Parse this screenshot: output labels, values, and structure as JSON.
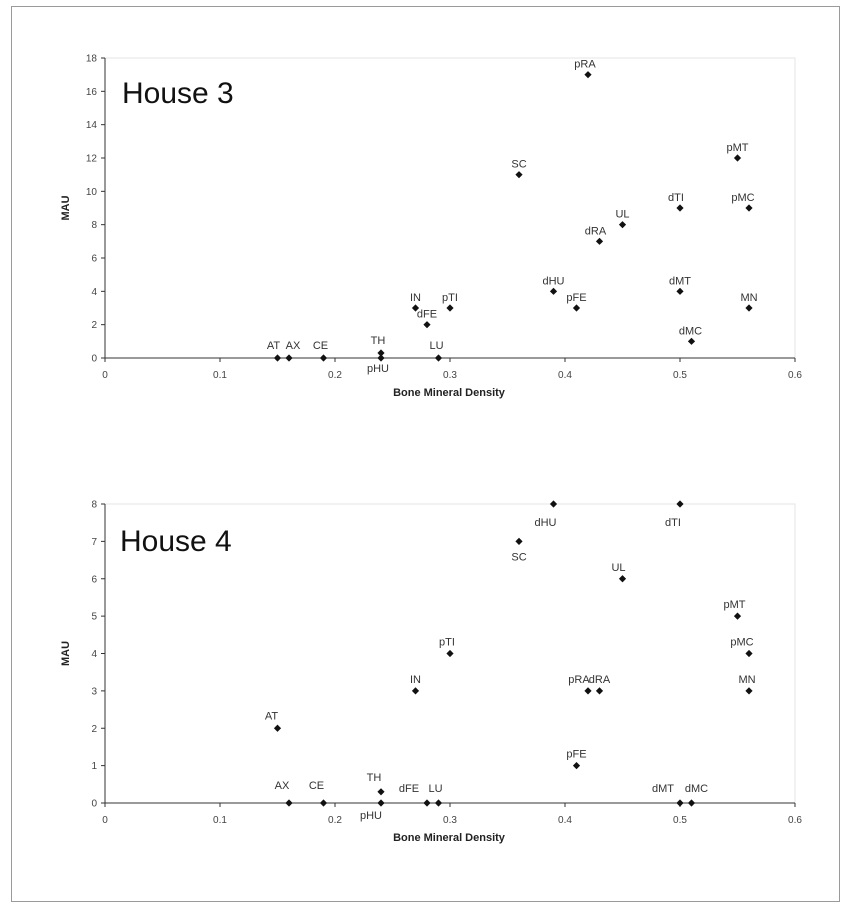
{
  "chart_data": [
    {
      "type": "scatter",
      "title": "House 3",
      "xlabel": "Bone Mineral Density",
      "ylabel": "MAU",
      "xlim": [
        0,
        0.6
      ],
      "ylim": [
        0,
        18
      ],
      "xticks": [
        "0",
        "0.1",
        "0.2",
        "0.3",
        "0.4",
        "0.5",
        "0.6"
      ],
      "yticks": [
        "0",
        "2",
        "4",
        "6",
        "8",
        "10",
        "12",
        "14",
        "16",
        "18"
      ],
      "points": [
        {
          "label": "AT",
          "x": 0.15,
          "y": 0
        },
        {
          "label": "AX",
          "x": 0.16,
          "y": 0
        },
        {
          "label": "CE",
          "x": 0.19,
          "y": 0
        },
        {
          "label": "TH",
          "x": 0.24,
          "y": 0.3
        },
        {
          "label": "pHU",
          "x": 0.24,
          "y": 0
        },
        {
          "label": "IN",
          "x": 0.27,
          "y": 3
        },
        {
          "label": "dFE",
          "x": 0.28,
          "y": 2
        },
        {
          "label": "pTI",
          "x": 0.3,
          "y": 3
        },
        {
          "label": "LU",
          "x": 0.29,
          "y": 0
        },
        {
          "label": "SC",
          "x": 0.36,
          "y": 11
        },
        {
          "label": "dHU",
          "x": 0.39,
          "y": 4
        },
        {
          "label": "pFE",
          "x": 0.41,
          "y": 3
        },
        {
          "label": "pRA",
          "x": 0.42,
          "y": 17
        },
        {
          "label": "dRA",
          "x": 0.43,
          "y": 7
        },
        {
          "label": "UL",
          "x": 0.45,
          "y": 8
        },
        {
          "label": "dTI",
          "x": 0.5,
          "y": 9
        },
        {
          "label": "dMT",
          "x": 0.5,
          "y": 4
        },
        {
          "label": "dMC",
          "x": 0.51,
          "y": 1
        },
        {
          "label": "pMT",
          "x": 0.55,
          "y": 12
        },
        {
          "label": "pMC",
          "x": 0.56,
          "y": 9
        },
        {
          "label": "MN",
          "x": 0.56,
          "y": 3
        }
      ]
    },
    {
      "type": "scatter",
      "title": "House 4",
      "xlabel": "Bone Mineral Density",
      "ylabel": "MAU",
      "xlim": [
        0,
        0.6
      ],
      "ylim": [
        0,
        8
      ],
      "xticks": [
        "0",
        "0.1",
        "0.2",
        "0.3",
        "0.4",
        "0.5",
        "0.6"
      ],
      "yticks": [
        "0",
        "1",
        "2",
        "3",
        "4",
        "5",
        "6",
        "7",
        "8"
      ],
      "points": [
        {
          "label": "AT",
          "x": 0.15,
          "y": 2
        },
        {
          "label": "AX",
          "x": 0.16,
          "y": 0
        },
        {
          "label": "CE",
          "x": 0.19,
          "y": 0
        },
        {
          "label": "TH",
          "x": 0.24,
          "y": 0.3
        },
        {
          "label": "pHU",
          "x": 0.24,
          "y": 0
        },
        {
          "label": "IN",
          "x": 0.27,
          "y": 3
        },
        {
          "label": "dFE",
          "x": 0.28,
          "y": 0
        },
        {
          "label": "LU",
          "x": 0.29,
          "y": 0
        },
        {
          "label": "pTI",
          "x": 0.3,
          "y": 4
        },
        {
          "label": "SC",
          "x": 0.36,
          "y": 7
        },
        {
          "label": "dHU",
          "x": 0.39,
          "y": 8
        },
        {
          "label": "pFE",
          "x": 0.41,
          "y": 1
        },
        {
          "label": "pRA",
          "x": 0.42,
          "y": 3
        },
        {
          "label": "dRA",
          "x": 0.43,
          "y": 3
        },
        {
          "label": "UL",
          "x": 0.45,
          "y": 6
        },
        {
          "label": "dTI",
          "x": 0.5,
          "y": 8
        },
        {
          "label": "dMT",
          "x": 0.5,
          "y": 0
        },
        {
          "label": "dMC",
          "x": 0.51,
          "y": 0
        },
        {
          "label": "pMT",
          "x": 0.55,
          "y": 5
        },
        {
          "label": "pMC",
          "x": 0.56,
          "y": 4
        },
        {
          "label": "MN",
          "x": 0.56,
          "y": 3
        }
      ]
    }
  ]
}
